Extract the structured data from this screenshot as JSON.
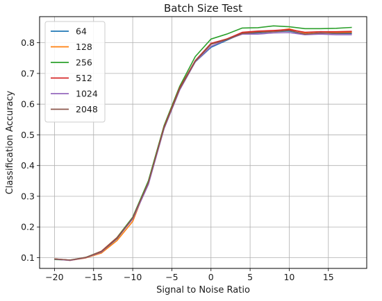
{
  "chart_data": {
    "type": "line",
    "title": "Batch Size Test",
    "xlabel": "Signal to Noise Ratio",
    "ylabel": "Classification Accuracy",
    "xlim": [
      -21.9,
      19.9
    ],
    "ylim": [
      0.065,
      0.885
    ],
    "xticks": [
      -20,
      -15,
      -10,
      -5,
      0,
      5,
      10,
      15
    ],
    "xtick_labels": [
      "−20",
      "−15",
      "−10",
      "−5",
      "0",
      "5",
      "10",
      "15"
    ],
    "yticks": [
      0.1,
      0.2,
      0.3,
      0.4,
      0.5,
      0.6,
      0.7,
      0.8
    ],
    "ytick_labels": [
      "0.1",
      "0.2",
      "0.3",
      "0.4",
      "0.5",
      "0.6",
      "0.7",
      "0.8"
    ],
    "grid": true,
    "legend_position": "top-left",
    "x": [
      -20,
      -18,
      -16,
      -14,
      -12,
      -10,
      -8,
      -6,
      -4,
      -2,
      0,
      2,
      4,
      6,
      8,
      10,
      12,
      14,
      16,
      18
    ],
    "series": [
      {
        "name": "64",
        "color": "#1f77b4",
        "values": [
          0.095,
          0.092,
          0.1,
          0.118,
          0.162,
          0.228,
          0.342,
          0.522,
          0.65,
          0.738,
          0.785,
          0.808,
          0.83,
          0.832,
          0.836,
          0.838,
          0.828,
          0.832,
          0.83,
          0.83
        ]
      },
      {
        "name": "128",
        "color": "#ff7f0e",
        "values": [
          0.096,
          0.091,
          0.099,
          0.115,
          0.156,
          0.218,
          0.348,
          0.528,
          0.652,
          0.74,
          0.795,
          0.812,
          0.832,
          0.836,
          0.838,
          0.845,
          0.832,
          0.836,
          0.834,
          0.835
        ]
      },
      {
        "name": "256",
        "color": "#2ca02c",
        "values": [
          0.094,
          0.092,
          0.101,
          0.121,
          0.166,
          0.232,
          0.35,
          0.53,
          0.658,
          0.755,
          0.812,
          0.828,
          0.848,
          0.849,
          0.855,
          0.852,
          0.846,
          0.846,
          0.847,
          0.85
        ]
      },
      {
        "name": "512",
        "color": "#d62728",
        "values": [
          0.096,
          0.092,
          0.1,
          0.121,
          0.165,
          0.228,
          0.344,
          0.526,
          0.653,
          0.742,
          0.798,
          0.812,
          0.834,
          0.838,
          0.84,
          0.843,
          0.834,
          0.836,
          0.836,
          0.837
        ]
      },
      {
        "name": "1024",
        "color": "#9467bd",
        "values": [
          0.095,
          0.091,
          0.1,
          0.118,
          0.163,
          0.226,
          0.338,
          0.52,
          0.646,
          0.738,
          0.788,
          0.81,
          0.828,
          0.828,
          0.832,
          0.833,
          0.826,
          0.828,
          0.826,
          0.826
        ]
      },
      {
        "name": "2048",
        "color": "#8c564b",
        "values": [
          0.096,
          0.092,
          0.101,
          0.12,
          0.163,
          0.23,
          0.345,
          0.524,
          0.65,
          0.74,
          0.795,
          0.81,
          0.83,
          0.834,
          0.836,
          0.84,
          0.828,
          0.832,
          0.831,
          0.832
        ]
      }
    ]
  }
}
